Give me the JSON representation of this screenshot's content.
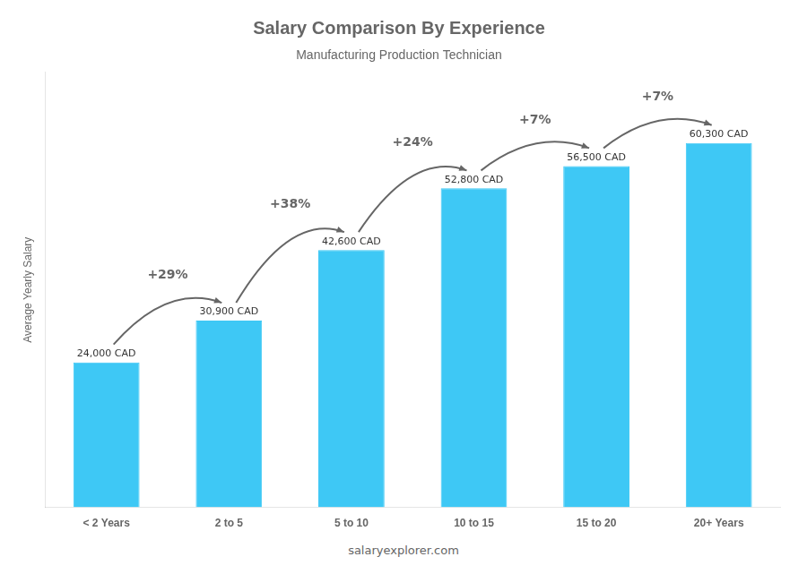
{
  "chart_data": {
    "type": "bar",
    "title": "Salary Comparison By Experience",
    "subtitle": "Manufacturing Production Technician",
    "categories": [
      "< 2 Years",
      "2 to 5",
      "5 to 10",
      "10 to 15",
      "15 to 20",
      "20+ Years"
    ],
    "values": [
      24000,
      30900,
      42600,
      52800,
      56500,
      60300
    ],
    "value_labels": [
      "24,000 CAD",
      "30,900 CAD",
      "42,600 CAD",
      "52,800 CAD",
      "56,500 CAD",
      "60,300 CAD"
    ],
    "data_labels": true,
    "color": "#3ec8f5",
    "ylim": [
      0,
      72000
    ],
    "y_label": "Average Yearly Salary",
    "tick_labels": "x",
    "grid": false,
    "annotations": [
      "+29%",
      "+38%",
      "+24%",
      "+7%",
      "+7%"
    ],
    "footer": "salaryexplorer.com"
  }
}
